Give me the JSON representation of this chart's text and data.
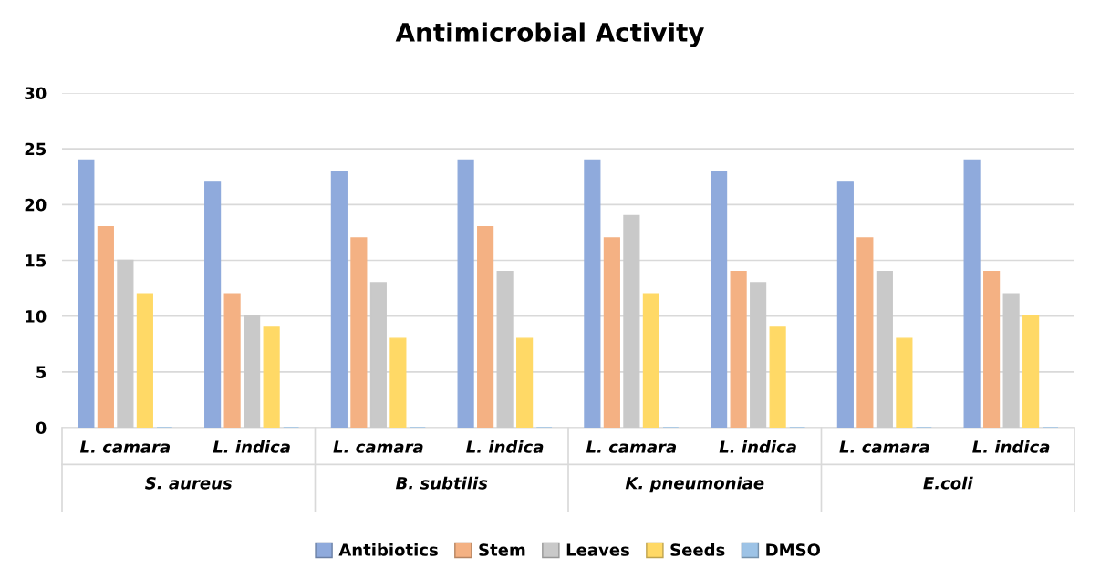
{
  "chart_data": {
    "type": "bar",
    "title": "Antimicrobial Activity",
    "categories": [
      "L. camara",
      "L. indica",
      "L. camara",
      "L. indica",
      "L. camara",
      "L. indica",
      "L. camara",
      "L. indica"
    ],
    "annotations": [
      "S. aureus",
      "B. subtilis",
      "K. pneumoniae",
      "E.coli"
    ],
    "series": [
      {
        "name": "Antibiotics",
        "color": "#8faadc",
        "values": [
          24,
          22,
          23,
          24,
          24,
          23,
          22,
          24
        ]
      },
      {
        "name": "Stem",
        "color": "#f4b183",
        "values": [
          18,
          12,
          17,
          18,
          17,
          14,
          17,
          14
        ]
      },
      {
        "name": "Leaves",
        "color": "#c9c9c9",
        "values": [
          15,
          10,
          13,
          14,
          19,
          13,
          14,
          12
        ]
      },
      {
        "name": "Seeds",
        "color": "#ffd966",
        "values": [
          12,
          9,
          8,
          8,
          12,
          9,
          8,
          10
        ]
      },
      {
        "name": "DMSO",
        "color": "#9dc3e6",
        "values": [
          0,
          0,
          0,
          0,
          0,
          0,
          0,
          0
        ]
      }
    ],
    "ylim": [
      0,
      30
    ],
    "yticks": [
      0,
      5,
      10,
      15,
      20,
      25,
      30
    ],
    "grid": "y",
    "legend": "bottom"
  }
}
